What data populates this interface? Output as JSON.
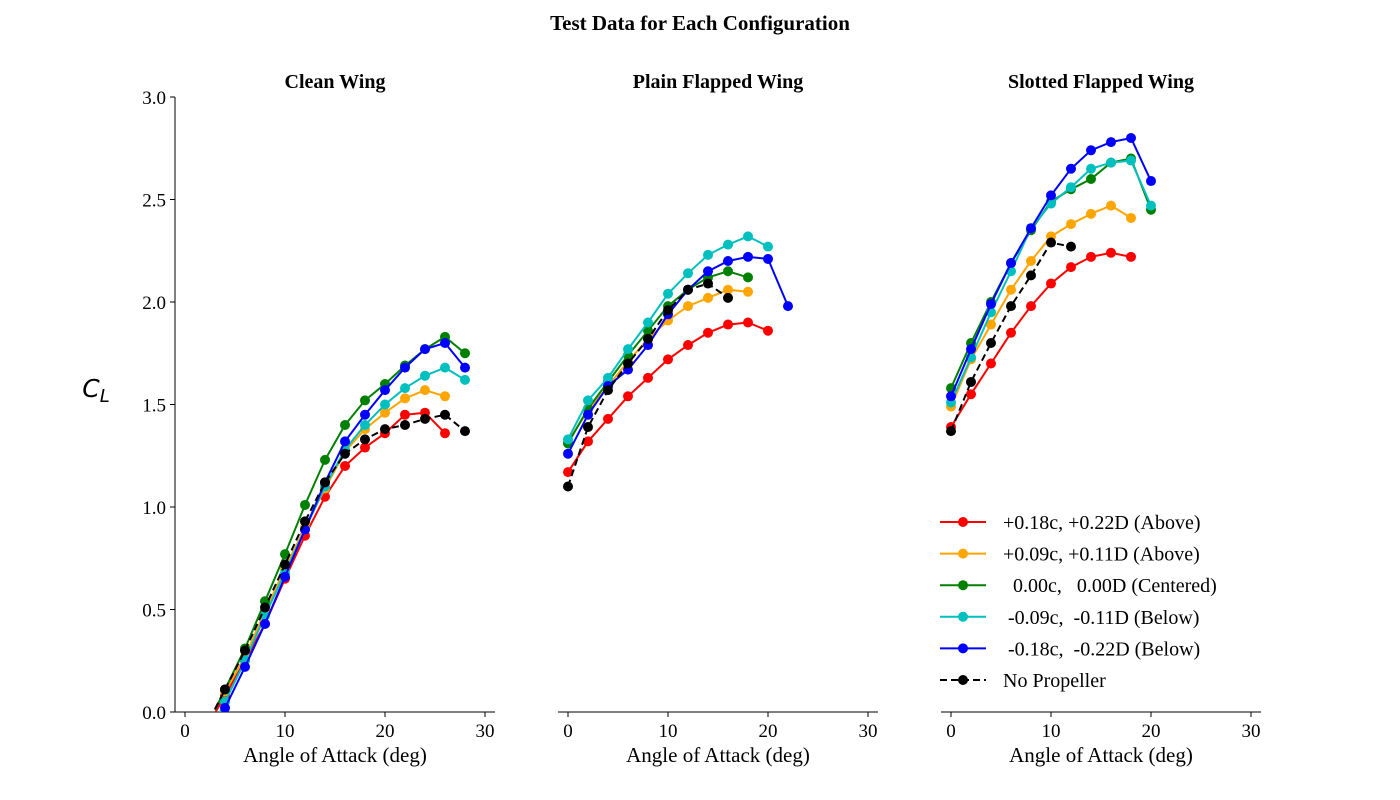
{
  "figure_title": "Test Data for Each Configuration",
  "y_axis_label": "C",
  "y_axis_label_sub": "L",
  "legend": [
    {
      "label": "+0.18c, +0.22D (Above)"
    },
    {
      "label": "+0.09c, +0.11D (Above)"
    },
    {
      "label": "  0.00c,   0.00D (Centered)"
    },
    {
      "label": " -0.09c,  -0.11D (Below)"
    },
    {
      "label": " -0.18c,  -0.22D (Below)"
    },
    {
      "label": "No Propeller"
    }
  ],
  "chart_data": [
    {
      "type": "line",
      "title": "Clean Wing",
      "xlabel": "Angle of Attack (deg)",
      "ylabel": "C_L",
      "xlim": [
        -1,
        31
      ],
      "ylim": [
        0,
        3
      ],
      "xticks": [
        0,
        10,
        20,
        30
      ],
      "yticks": [
        0.0,
        0.5,
        1.0,
        1.5,
        2.0,
        2.5,
        3.0
      ],
      "show_y_ticklabels": true,
      "grid": false,
      "series": [
        {
          "name": "+0.18c, +0.22D (Above)",
          "color": "#ff0000",
          "dash": false,
          "x": [
            4,
            6,
            8,
            10,
            12,
            14,
            16,
            18,
            20,
            22,
            24,
            26
          ],
          "y": [
            0.08,
            0.25,
            0.43,
            0.65,
            0.86,
            1.05,
            1.2,
            1.29,
            1.36,
            1.45,
            1.46,
            1.36
          ]
        },
        {
          "name": "+0.09c, +0.11D (Above)",
          "color": "#ffa500",
          "dash": false,
          "x": [
            4,
            6,
            8,
            10,
            12,
            14,
            16,
            18,
            20,
            22,
            24,
            26
          ],
          "y": [
            0.1,
            0.27,
            0.49,
            0.7,
            0.9,
            1.09,
            1.27,
            1.38,
            1.46,
            1.53,
            1.57,
            1.54
          ]
        },
        {
          "name": "0.00c, 0.00D (Centered)",
          "color": "#008000",
          "dash": false,
          "x": [
            4,
            6,
            8,
            10,
            12,
            14,
            16,
            18,
            20,
            22,
            24,
            26,
            28
          ],
          "y": [
            0.11,
            0.31,
            0.54,
            0.77,
            1.01,
            1.23,
            1.4,
            1.52,
            1.6,
            1.69,
            1.77,
            1.83,
            1.75
          ]
        },
        {
          "name": "-0.09c, -0.11D (Below)",
          "color": "#00bfbf",
          "dash": false,
          "x": [
            4,
            6,
            8,
            10,
            12,
            14,
            16,
            18,
            20,
            22,
            24,
            26,
            28
          ],
          "y": [
            0.05,
            0.25,
            0.47,
            0.68,
            0.89,
            1.1,
            1.28,
            1.4,
            1.5,
            1.58,
            1.64,
            1.68,
            1.62
          ]
        },
        {
          "name": "-0.18c, -0.22D (Below)",
          "color": "#0000ff",
          "dash": false,
          "x": [
            4,
            6,
            8,
            10,
            12,
            14,
            16,
            18,
            20,
            22,
            24,
            26,
            28
          ],
          "y": [
            0.02,
            0.22,
            0.43,
            0.66,
            0.89,
            1.12,
            1.32,
            1.45,
            1.57,
            1.68,
            1.77,
            1.8,
            1.68
          ]
        },
        {
          "name": "No Propeller",
          "color": "#000000",
          "dash": true,
          "x": [
            4,
            6,
            8,
            10,
            12,
            14,
            16,
            18,
            20,
            22,
            24,
            26,
            28
          ],
          "y": [
            0.11,
            0.3,
            0.51,
            0.72,
            0.93,
            1.12,
            1.26,
            1.33,
            1.38,
            1.4,
            1.43,
            1.45,
            1.37
          ]
        }
      ]
    },
    {
      "type": "line",
      "title": "Plain Flapped Wing",
      "xlabel": "Angle of Attack (deg)",
      "xlim": [
        -1,
        31
      ],
      "ylim": [
        0,
        3
      ],
      "xticks": [
        0,
        10,
        20,
        30
      ],
      "show_y_ticklabels": false,
      "grid": false,
      "series": [
        {
          "name": "+0.18c, +0.22D (Above)",
          "color": "#ff0000",
          "dash": false,
          "x": [
            0,
            2,
            4,
            6,
            8,
            10,
            12,
            14,
            16,
            18,
            20
          ],
          "y": [
            1.17,
            1.32,
            1.43,
            1.54,
            1.63,
            1.72,
            1.79,
            1.85,
            1.89,
            1.9,
            1.86
          ]
        },
        {
          "name": "+0.09c, +0.11D (Above)",
          "color": "#ffa500",
          "dash": false,
          "x": [
            0,
            2,
            4,
            6,
            8,
            10,
            12,
            14,
            16,
            18
          ],
          "y": [
            1.32,
            1.47,
            1.59,
            1.71,
            1.82,
            1.91,
            1.98,
            2.02,
            2.06,
            2.05
          ]
        },
        {
          "name": "0.00c, 0.00D (Centered)",
          "color": "#008000",
          "dash": false,
          "x": [
            0,
            2,
            4,
            6,
            8,
            10,
            12,
            14,
            16,
            18
          ],
          "y": [
            1.31,
            1.48,
            1.61,
            1.74,
            1.86,
            1.98,
            2.06,
            2.12,
            2.15,
            2.12
          ]
        },
        {
          "name": "-0.09c, -0.11D (Below)",
          "color": "#00bfbf",
          "dash": false,
          "x": [
            0,
            2,
            4,
            6,
            8,
            10,
            12,
            14,
            16,
            18,
            20
          ],
          "y": [
            1.33,
            1.52,
            1.63,
            1.77,
            1.9,
            2.04,
            2.14,
            2.23,
            2.28,
            2.32,
            2.27
          ]
        },
        {
          "name": "-0.18c, -0.22D (Below)",
          "color": "#0000ff",
          "dash": false,
          "x": [
            0,
            2,
            4,
            6,
            8,
            10,
            12,
            14,
            16,
            18,
            20,
            22
          ],
          "y": [
            1.26,
            1.45,
            1.59,
            1.67,
            1.79,
            1.94,
            2.06,
            2.15,
            2.2,
            2.22,
            2.21,
            1.98
          ]
        },
        {
          "name": "No Propeller",
          "color": "#000000",
          "dash": true,
          "x": [
            0,
            2,
            4,
            6,
            8,
            10,
            12,
            14,
            16
          ],
          "y": [
            1.1,
            1.39,
            1.57,
            1.7,
            1.82,
            1.96,
            2.06,
            2.09,
            2.02
          ]
        }
      ]
    },
    {
      "type": "line",
      "title": "Slotted Flapped Wing",
      "xlabel": "Angle of Attack (deg)",
      "xlim": [
        -1,
        31
      ],
      "ylim": [
        0,
        3
      ],
      "xticks": [
        0,
        10,
        20,
        30
      ],
      "show_y_ticklabels": false,
      "grid": false,
      "legend_position": "lower-right",
      "series": [
        {
          "name": "+0.18c, +0.22D (Above)",
          "color": "#ff0000",
          "dash": false,
          "x": [
            0,
            2,
            4,
            6,
            8,
            10,
            12,
            14,
            16,
            18
          ],
          "y": [
            1.39,
            1.55,
            1.7,
            1.85,
            1.98,
            2.09,
            2.17,
            2.22,
            2.24,
            2.22
          ]
        },
        {
          "name": "+0.09c, +0.11D (Above)",
          "color": "#ffa500",
          "dash": false,
          "x": [
            0,
            2,
            4,
            6,
            8,
            10,
            12,
            14,
            16,
            18
          ],
          "y": [
            1.49,
            1.72,
            1.89,
            2.06,
            2.2,
            2.32,
            2.38,
            2.43,
            2.47,
            2.41
          ]
        },
        {
          "name": "0.00c, 0.00D (Centered)",
          "color": "#008000",
          "dash": false,
          "x": [
            0,
            2,
            4,
            6,
            8,
            10,
            12,
            14,
            16,
            18,
            20
          ],
          "y": [
            1.58,
            1.8,
            2.0,
            2.19,
            2.35,
            2.49,
            2.55,
            2.6,
            2.68,
            2.7,
            2.45
          ]
        },
        {
          "name": "-0.09c, -0.11D (Below)",
          "color": "#00bfbf",
          "dash": false,
          "x": [
            0,
            2,
            4,
            6,
            8,
            10,
            12,
            14,
            16,
            18,
            20
          ],
          "y": [
            1.51,
            1.73,
            1.95,
            2.15,
            2.36,
            2.48,
            2.56,
            2.65,
            2.68,
            2.69,
            2.47
          ]
        },
        {
          "name": "-0.18c, -0.22D (Below)",
          "color": "#0000ff",
          "dash": false,
          "x": [
            0,
            2,
            4,
            6,
            8,
            10,
            12,
            14,
            16,
            18,
            20
          ],
          "y": [
            1.54,
            1.77,
            1.99,
            2.19,
            2.36,
            2.52,
            2.65,
            2.74,
            2.78,
            2.8,
            2.59
          ]
        },
        {
          "name": "No Propeller",
          "color": "#000000",
          "dash": true,
          "x": [
            0,
            2,
            4,
            6,
            8,
            10,
            12
          ],
          "y": [
            1.37,
            1.61,
            1.8,
            1.98,
            2.13,
            2.29,
            2.27
          ]
        }
      ]
    }
  ]
}
